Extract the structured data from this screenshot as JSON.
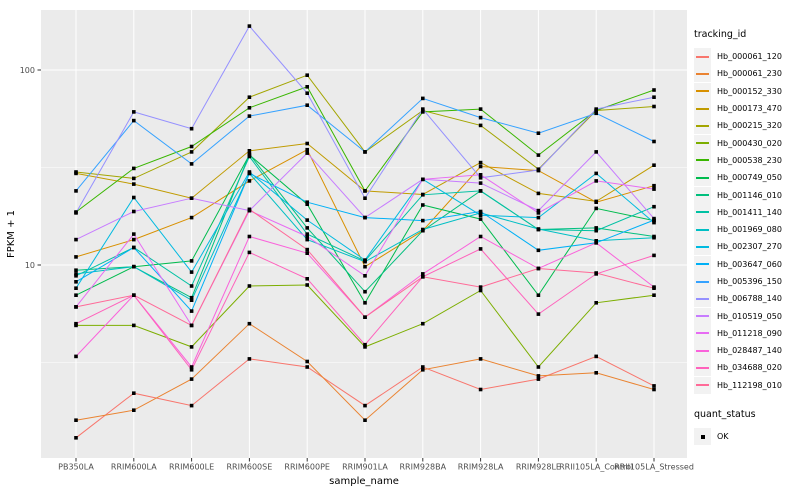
{
  "figure": {
    "background": "#FFFFFF",
    "panel_bg": "#EBEBEB",
    "grid_color": "#FFFFFF",
    "tick_color": "#333333",
    "tick_label_color": "#4D4D4D",
    "axis_title_color": "#000000",
    "point_color": "#000000"
  },
  "legend": {
    "tracking_title": "tracking_id",
    "quant_title": "quant_status",
    "quant_items": [
      {
        "label": "OK",
        "marker": "black-square"
      }
    ]
  },
  "chart_data": {
    "type": "line",
    "title": "",
    "xlabel": "sample_name",
    "ylabel": "FPKM + 1",
    "y_scale": "log10",
    "y_tick_labels": [
      "100",
      "10"
    ],
    "y_tick_values": [
      100,
      10
    ],
    "y_minor_values": [
      31.623,
      3.1623
    ],
    "ylim": [
      1.02,
      200
    ],
    "grid": "on",
    "legend_position": "right",
    "point_shape": "filled-square",
    "categories": [
      "PB350LA",
      "RRIM600LA",
      "RRIM600LE",
      "RRIM600SE",
      "RRIM600PE",
      "RRIM901LA",
      "RRIM928BA",
      "RRIM928LA",
      "RRIM928LE",
      "RRII105LA_Control",
      "RRII105LA_Stressed"
    ],
    "series": [
      {
        "name": "Hb_000061_120",
        "color": "#F8766D",
        "values": [
          1.3,
          2.2,
          1.9,
          3.3,
          3.0,
          1.9,
          3.0,
          2.3,
          2.6,
          3.4,
          2.4
        ]
      },
      {
        "name": "Hb_000061_230",
        "color": "#EA8331",
        "values": [
          1.6,
          1.8,
          2.6,
          5.0,
          3.2,
          1.6,
          2.9,
          3.3,
          2.7,
          2.8,
          2.3
        ]
      },
      {
        "name": "Hb_000152_330",
        "color": "#D89000",
        "values": [
          11.0,
          13.5,
          17.5,
          27.0,
          39.0,
          9.8,
          15.0,
          32.0,
          30.5,
          21.0,
          25.5
        ]
      },
      {
        "name": "Hb_000173_470",
        "color": "#C09B00",
        "values": [
          29.5,
          26.0,
          22.0,
          38.5,
          42.0,
          24.0,
          23.0,
          33.5,
          23.3,
          21.2,
          32.5
        ]
      },
      {
        "name": "Hb_000215_320",
        "color": "#A3A500",
        "values": [
          30.0,
          27.8,
          38.0,
          72.5,
          94.0,
          38.0,
          62.0,
          52.0,
          31.0,
          62.0,
          65.0
        ]
      },
      {
        "name": "Hb_000430_020",
        "color": "#7CAE00",
        "values": [
          4.9,
          4.9,
          3.8,
          7.8,
          7.9,
          3.8,
          5.0,
          7.4,
          3.0,
          6.4,
          7.0
        ]
      },
      {
        "name": "Hb_000538_230",
        "color": "#39B600",
        "values": [
          18.7,
          31.3,
          40.5,
          64.0,
          82.0,
          24.0,
          61.0,
          63.0,
          36.6,
          62.0,
          79.0
        ]
      },
      {
        "name": "Hb_000749_050",
        "color": "#00BB4E",
        "values": [
          7.0,
          9.8,
          10.5,
          36.7,
          20.5,
          6.4,
          20.3,
          17.2,
          7.0,
          19.5,
          16.9
        ]
      },
      {
        "name": "Hb_001146_010",
        "color": "#00BF7D",
        "values": [
          9.4,
          9.8,
          6.8,
          37.0,
          15.5,
          7.3,
          15.0,
          24.0,
          15.2,
          15.5,
          14.0
        ]
      },
      {
        "name": "Hb_001411_140",
        "color": "#00C1A3",
        "values": [
          8.8,
          12.3,
          7.8,
          36.0,
          14.4,
          10.5,
          22.9,
          24.0,
          15.2,
          15.0,
          19.9
        ]
      },
      {
        "name": "Hb_001969_080",
        "color": "#00BFC4",
        "values": [
          9.0,
          9.8,
          6.6,
          29.5,
          13.5,
          10.4,
          15.2,
          18.5,
          15.3,
          13.3,
          13.8
        ]
      },
      {
        "name": "Hb_002307_270",
        "color": "#00BAE0",
        "values": [
          7.6,
          22.2,
          9.2,
          30.0,
          17.0,
          10.6,
          27.5,
          18.0,
          17.5,
          29.5,
          16.5
        ]
      },
      {
        "name": "Hb_003647_060",
        "color": "#00B0F6",
        "values": [
          8.2,
          12.3,
          5.8,
          29.5,
          21.0,
          17.5,
          16.9,
          18.8,
          11.9,
          13.0,
          17.0
        ]
      },
      {
        "name": "Hb_005396_150",
        "color": "#35A2FF",
        "values": [
          24.0,
          55.0,
          33.0,
          58.0,
          66.0,
          38.0,
          71.5,
          57.0,
          47.4,
          60.0,
          43.0
        ]
      },
      {
        "name": "Hb_006788_140",
        "color": "#9590FF",
        "values": [
          18.5,
          61.0,
          50.0,
          168.0,
          76.0,
          22.0,
          63.0,
          28.0,
          30.7,
          63.0,
          72.5
        ]
      },
      {
        "name": "Hb_010519_050",
        "color": "#C77CFF",
        "values": [
          13.5,
          18.8,
          22.0,
          19.0,
          37.5,
          17.5,
          27.5,
          26.3,
          19.0,
          38.0,
          17.3
        ]
      },
      {
        "name": "Hb_011218_090",
        "color": "#E76BF3",
        "values": [
          6.1,
          14.4,
          4.9,
          19.0,
          14.0,
          8.8,
          27.5,
          29.0,
          18.5,
          27.0,
          24.5
        ]
      },
      {
        "name": "Hb_028487_140",
        "color": "#FA62DB",
        "values": [
          3.4,
          7.0,
          3.0,
          14.0,
          11.5,
          5.4,
          9.0,
          14.0,
          9.6,
          13.0,
          7.7
        ]
      },
      {
        "name": "Hb_034688_020",
        "color": "#FF62BC",
        "values": [
          5.0,
          7.0,
          2.9,
          11.6,
          8.5,
          3.9,
          8.7,
          12.1,
          5.6,
          9.0,
          11.2
        ]
      },
      {
        "name": "Hb_112198_010",
        "color": "#FF6A98",
        "values": [
          6.1,
          7.0,
          4.9,
          19.3,
          12.0,
          5.4,
          8.7,
          7.7,
          9.6,
          9.1,
          7.6
        ]
      }
    ]
  }
}
